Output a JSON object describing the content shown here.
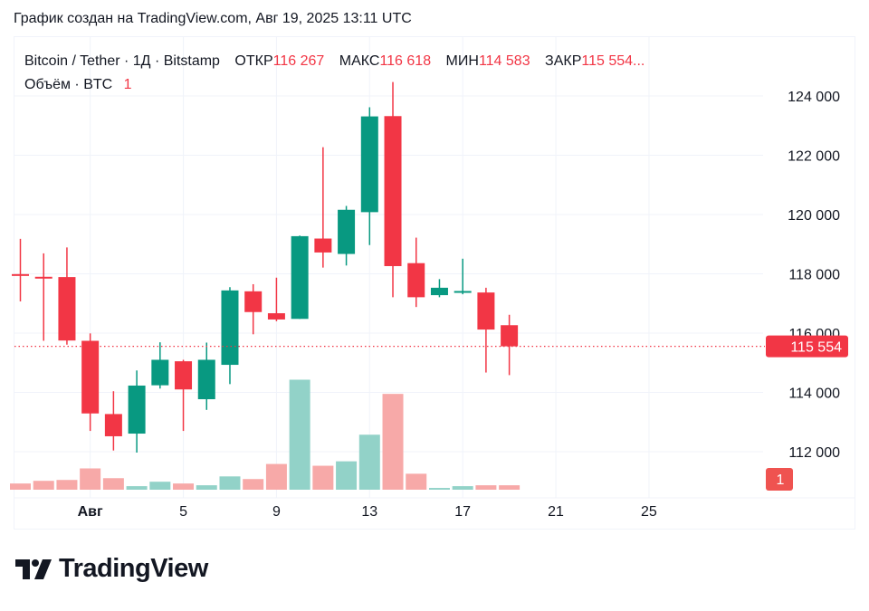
{
  "caption": "График создан на TradingView.com, Авг 19, 2025 13:11 UTC",
  "legend": {
    "symbol": "Bitcoin / Tether · 1Д · Bitstamp",
    "open_label": "ОТКР",
    "open": "116 267",
    "high_label": "МАКС",
    "high": "116 618",
    "low_label": "МИН",
    "low": "114 583",
    "close_label": "ЗАКР",
    "close": "115 554...",
    "volume_label": "Объём · BTC",
    "volume": "1"
  },
  "logo_text": "TradingView",
  "colors": {
    "up": "#089981",
    "down": "#f23645",
    "up_volume": "#92d2c8",
    "down_volume": "#f7a9a8"
  },
  "chart_data": {
    "type": "candlestick",
    "dates": [
      "2025-07-29",
      "2025-07-30",
      "2025-07-31",
      "2025-08-01",
      "2025-08-02",
      "2025-08-03",
      "2025-08-04",
      "2025-08-05",
      "2025-08-06",
      "2025-08-07",
      "2025-08-08",
      "2025-08-09",
      "2025-08-10",
      "2025-08-11",
      "2025-08-12",
      "2025-08-13",
      "2025-08-14",
      "2025-08-15",
      "2025-08-16",
      "2025-08-17",
      "2025-08-18",
      "2025-08-19"
    ],
    "ohlc": [
      [
        117990,
        119180,
        117070,
        117960
      ],
      [
        117900,
        118690,
        115740,
        117850
      ],
      [
        117890,
        118890,
        115610,
        115750
      ],
      [
        115740,
        115990,
        112700,
        113290
      ],
      [
        113270,
        114040,
        112040,
        112520
      ],
      [
        112610,
        114740,
        111970,
        114230
      ],
      [
        114240,
        115690,
        114130,
        115100
      ],
      [
        115050,
        115100,
        112700,
        114100
      ],
      [
        113770,
        115680,
        113410,
        115100
      ],
      [
        114930,
        117550,
        114280,
        117440
      ],
      [
        117410,
        117650,
        115960,
        116710
      ],
      [
        116670,
        117870,
        116400,
        116460
      ],
      [
        116480,
        119290,
        116480,
        119270
      ],
      [
        119190,
        122270,
        118210,
        118720
      ],
      [
        118670,
        120290,
        118280,
        120160
      ],
      [
        120080,
        123620,
        118970,
        123310
      ],
      [
        123320,
        124470,
        117210,
        118260
      ],
      [
        118360,
        119220,
        116880,
        117210
      ],
      [
        117280,
        117820,
        117210,
        117530
      ],
      [
        117380,
        118510,
        117310,
        117420
      ],
      [
        117370,
        117530,
        114670,
        116120
      ],
      [
        116267,
        116618,
        114583,
        115554
      ]
    ],
    "volume": [
      1.4,
      2.0,
      2.2,
      4.8,
      2.6,
      0.8,
      1.8,
      1.4,
      1.0,
      3.0,
      2.4,
      5.8,
      24.8,
      5.4,
      6.4,
      12.4,
      21.6,
      3.6,
      0.4,
      0.8,
      1.0,
      1.0
    ],
    "y_ticks": [
      112000,
      114000,
      116000,
      118000,
      120000,
      122000,
      124000
    ],
    "y_tick_labels": [
      "112 000",
      "114 000",
      "116 000",
      "118 000",
      "120 000",
      "122 000",
      "124 000"
    ],
    "ylim": [
      111000,
      125000
    ],
    "x_ticks": [
      {
        "date": "2025-08-01",
        "label": "Авг"
      },
      {
        "date": "2025-08-05",
        "label": "5"
      },
      {
        "date": "2025-08-09",
        "label": "9"
      },
      {
        "date": "2025-08-13",
        "label": "13"
      },
      {
        "date": "2025-08-17",
        "label": "17"
      },
      {
        "date": "2025-08-21",
        "label": "21"
      },
      {
        "date": "2025-08-25",
        "label": "25"
      }
    ],
    "last_price_label": "115 554",
    "last_volume_label": "1",
    "grid": true
  }
}
